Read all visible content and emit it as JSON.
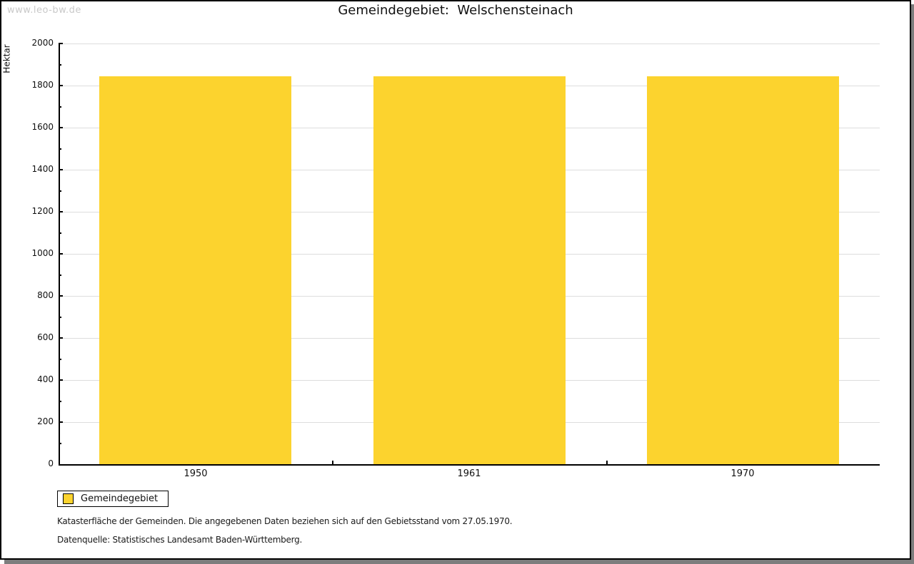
{
  "watermark": "www.leo-bw.de",
  "header": {
    "title": "Gemeindegebiet:  Welschensteinach"
  },
  "chart_data": {
    "type": "bar",
    "title": "Gemeindegebiet:  Welschensteinach",
    "categories": [
      "1950",
      "1961",
      "1970"
    ],
    "series": [
      {
        "name": "Gemeindegebiet",
        "values": [
          1845,
          1845,
          1845
        ]
      }
    ],
    "xlabel": "",
    "ylabel": "Hektar",
    "ylim": [
      0,
      2000
    ],
    "ytick_step": 200,
    "yminor_step": 100,
    "grid": true,
    "legend_position": "bottom-left",
    "colors": {
      "bar": "#FCD32E",
      "gridline": "#DDDDDD",
      "axis": "#000000"
    }
  },
  "legend": {
    "items": [
      {
        "label": "Gemeindegebiet",
        "color": "#FCD32E"
      }
    ]
  },
  "footnotes": {
    "line1": "Katasterfläche der Gemeinden. Die angegebenen Daten beziehen sich auf den Gebietsstand vom 27.05.1970.",
    "line2": "Datenquelle: Statistisches Landesamt Baden-Württemberg."
  }
}
